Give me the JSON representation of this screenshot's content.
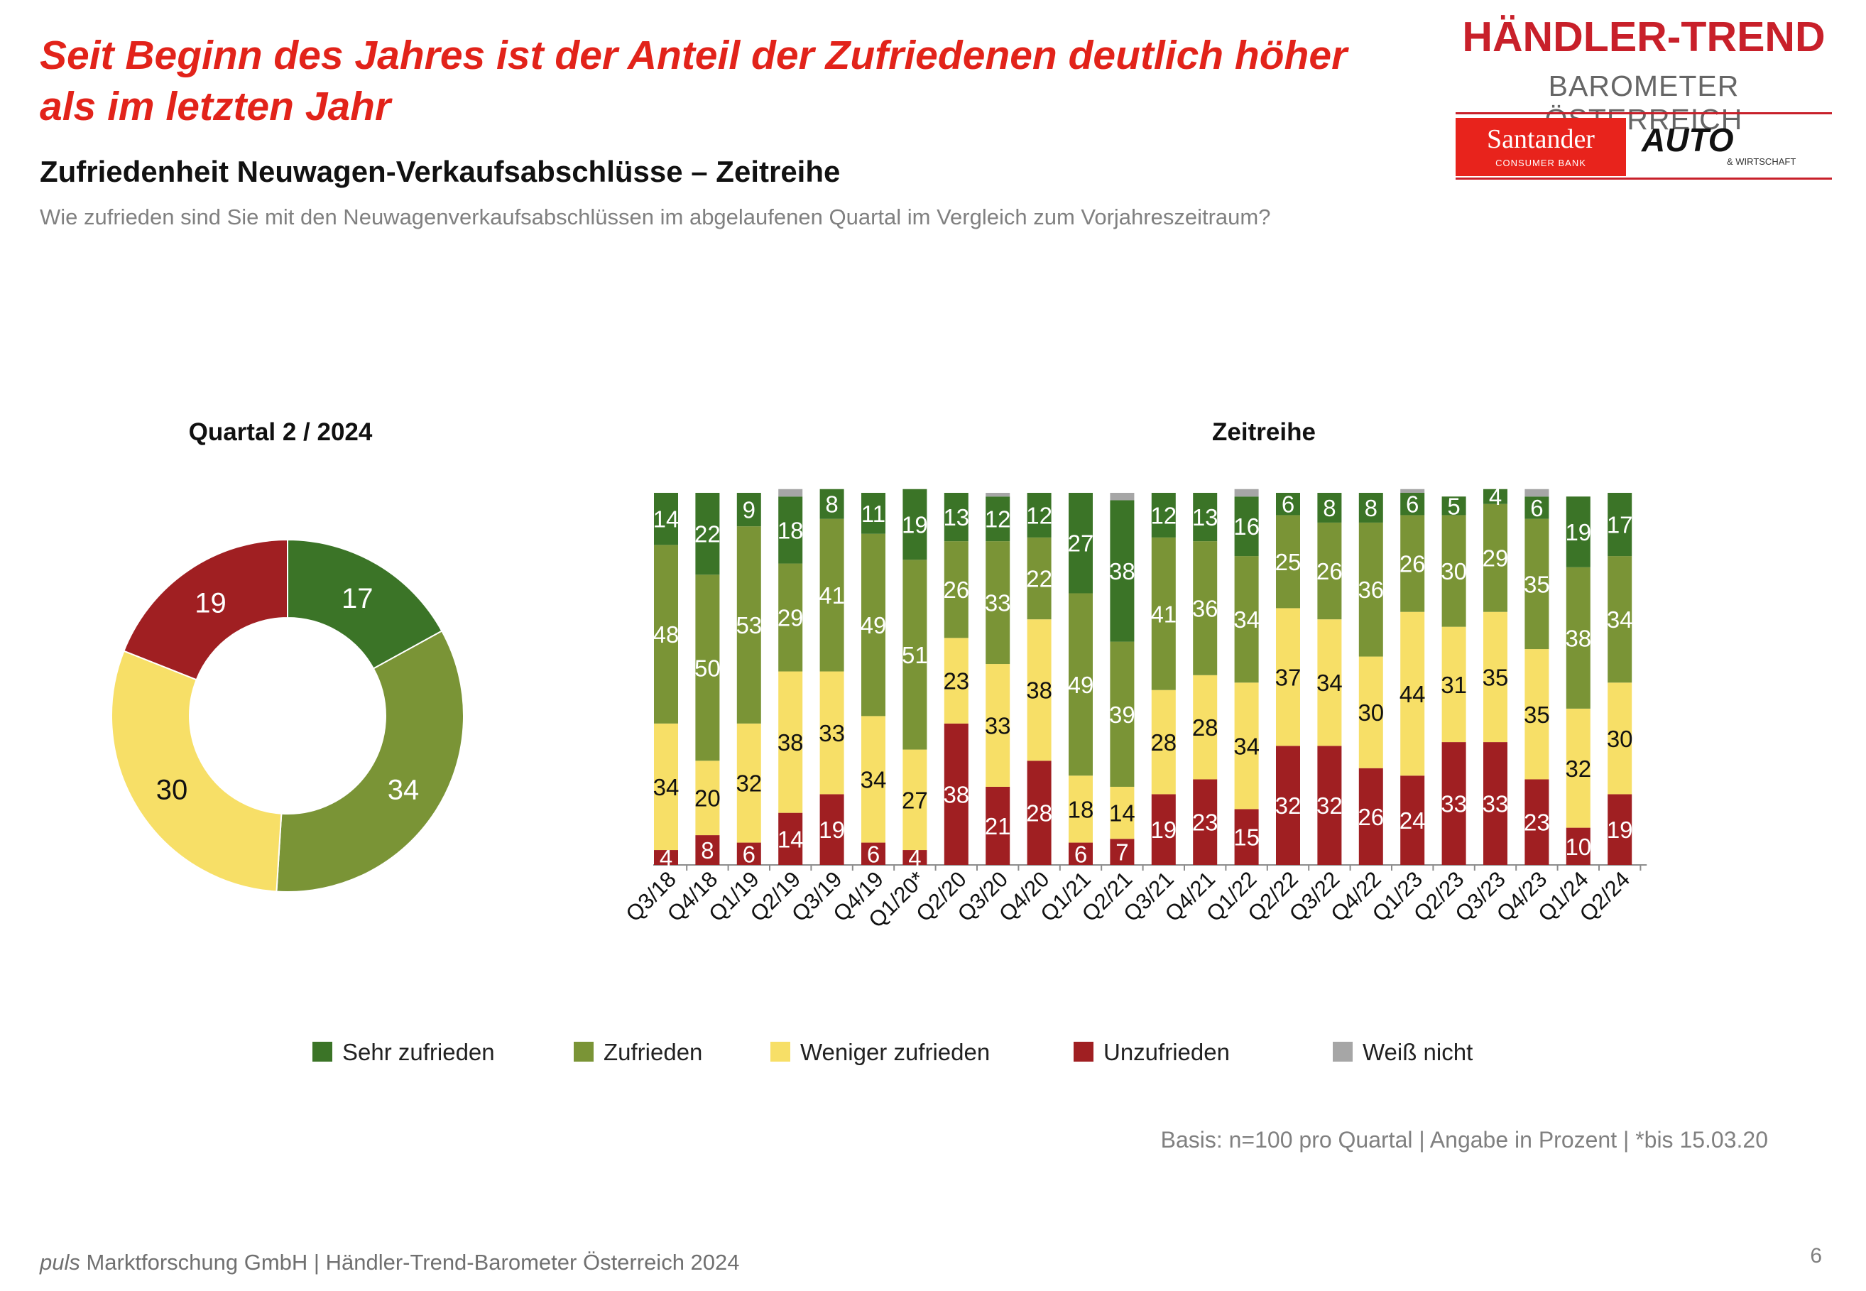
{
  "headline": "Seit Beginn des Jahres ist der Anteil der Zufriedenen deutlich höher als im letzten Jahr",
  "subtitle": "Zufriedenheit Neuwagen-Verkaufsabschlüsse – Zeitreihe",
  "question": "Wie zufrieden sind Sie mit den Neuwagenverkaufsabschlüssen im abgelaufenen Quartal im Vergleich zum Vorjahreszeitraum?",
  "logo": {
    "title": "HÄNDLER-TREND",
    "subtitle": "BAROMETER ÖSTERREICH",
    "santander": "Santander",
    "santander_sub": "CONSUMER BANK",
    "auto": "AUTO",
    "auto_sub": "& WIRTSCHAFT"
  },
  "colors": {
    "sehr_zufrieden": "#3b7427",
    "zufrieden": "#7a9436",
    "weniger_zufrieden": "#f7df67",
    "unzufrieden": "#a01f22",
    "weiss_nicht": "#a6a6a6"
  },
  "legend": [
    {
      "label": "Sehr zufrieden",
      "color": "#3b7427"
    },
    {
      "label": "Zufrieden",
      "color": "#7a9436"
    },
    {
      "label": "Weniger zufrieden",
      "color": "#f7df67"
    },
    {
      "label": "Unzufrieden",
      "color": "#a01f22"
    },
    {
      "label": "Weiß nicht",
      "color": "#a6a6a6"
    }
  ],
  "chart_data": [
    {
      "type": "pie",
      "title": "Quartal 2 / 2024",
      "labels": [
        "Sehr zufrieden",
        "Zufrieden",
        "Weniger zufrieden",
        "Unzufrieden"
      ],
      "values": [
        17,
        34,
        30,
        19
      ]
    },
    {
      "type": "bar",
      "stacked": true,
      "title": "Zeitreihe",
      "categories": [
        "Q3/18",
        "Q4/18",
        "Q1/19",
        "Q2/19",
        "Q3/19",
        "Q4/19",
        "Q1/20*",
        "Q2/20",
        "Q3/20",
        "Q4/20",
        "Q1/21",
        "Q2/21",
        "Q3/21",
        "Q4/21",
        "Q1/22",
        "Q2/22",
        "Q3/22",
        "Q4/22",
        "Q1/23",
        "Q2/23",
        "Q3/23",
        "Q4/23",
        "Q1/24",
        "Q2/24"
      ],
      "ylim": [
        0,
        100
      ],
      "series": [
        {
          "name": "Unzufrieden",
          "values": [
            4,
            8,
            6,
            14,
            19,
            6,
            4,
            38,
            21,
            28,
            6,
            7,
            19,
            23,
            15,
            32,
            32,
            26,
            24,
            33,
            33,
            23,
            10,
            19
          ]
        },
        {
          "name": "Weniger zufrieden",
          "values": [
            34,
            20,
            32,
            38,
            33,
            34,
            27,
            23,
            33,
            38,
            18,
            14,
            28,
            28,
            34,
            37,
            34,
            30,
            44,
            31,
            35,
            35,
            32,
            30
          ]
        },
        {
          "name": "Zufrieden",
          "values": [
            48,
            50,
            53,
            29,
            41,
            49,
            51,
            26,
            33,
            22,
            49,
            39,
            41,
            36,
            34,
            25,
            26,
            36,
            26,
            30,
            29,
            35,
            38,
            34
          ]
        },
        {
          "name": "Sehr zufrieden",
          "values": [
            14,
            22,
            9,
            18,
            8,
            11,
            19,
            13,
            12,
            12,
            27,
            38,
            12,
            13,
            16,
            6,
            8,
            8,
            6,
            5,
            4,
            6,
            19,
            17
          ]
        },
        {
          "name": "Weiß nicht",
          "values": [
            0,
            0,
            0,
            2,
            0,
            0,
            0,
            0,
            1,
            0,
            0,
            2,
            0,
            0,
            2,
            0,
            0,
            0,
            1,
            0,
            0,
            2,
            0,
            0
          ]
        }
      ]
    }
  ],
  "basis": "Basis: n=100 pro Quartal | Angabe in Prozent | *bis 15.03.20",
  "footer": {
    "brand": "puls",
    "rest": " Marktforschung GmbH | Händler-Trend-Barometer Österreich 2024"
  },
  "page_number": "6"
}
